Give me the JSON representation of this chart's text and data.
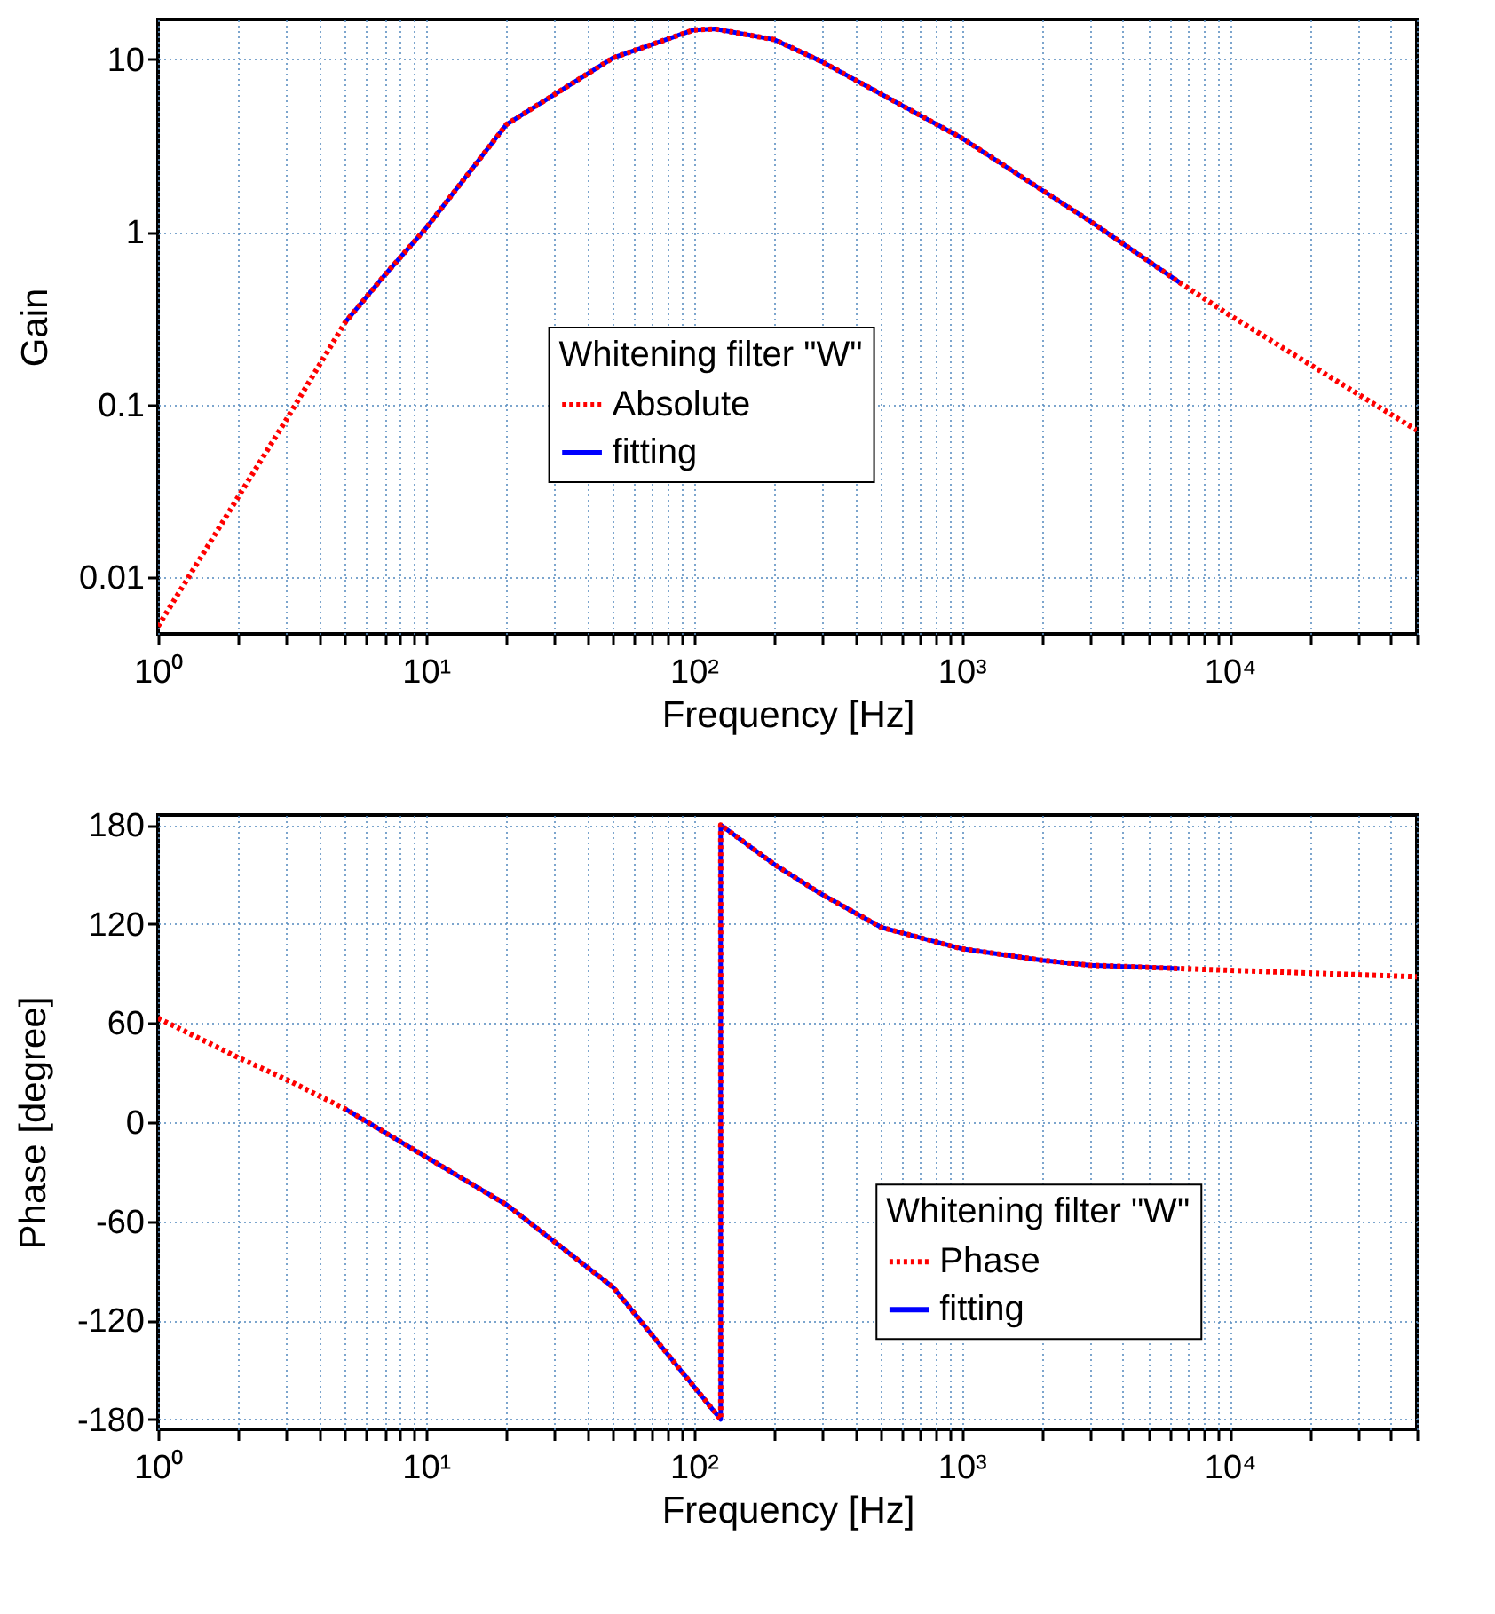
{
  "chart_data": [
    {
      "type": "line",
      "xlabel": "Frequency [Hz]",
      "ylabel": "Gain",
      "legend_title": "Whitening filter \"W\"",
      "legend": "center",
      "grid": true,
      "log": "xy",
      "xlim": [
        1,
        50000
      ],
      "ylim": [
        0.0047,
        17
      ],
      "xticks": [
        {
          "value": 1,
          "label": "10⁰"
        },
        {
          "value": 2,
          "label": null
        },
        {
          "value": 3,
          "label": null
        },
        {
          "value": 4,
          "label": null
        },
        {
          "value": 5,
          "label": null
        },
        {
          "value": 6,
          "label": null
        },
        {
          "value": 7,
          "label": null
        },
        {
          "value": 8,
          "label": null
        },
        {
          "value": 9,
          "label": null
        },
        {
          "value": 10,
          "label": "10¹"
        },
        {
          "value": 20,
          "label": null
        },
        {
          "value": 30,
          "label": null
        },
        {
          "value": 40,
          "label": null
        },
        {
          "value": 50,
          "label": null
        },
        {
          "value": 60,
          "label": null
        },
        {
          "value": 70,
          "label": null
        },
        {
          "value": 80,
          "label": null
        },
        {
          "value": 90,
          "label": null
        },
        {
          "value": 100,
          "label": "10²"
        },
        {
          "value": 200,
          "label": null
        },
        {
          "value": 300,
          "label": null
        },
        {
          "value": 400,
          "label": null
        },
        {
          "value": 500,
          "label": null
        },
        {
          "value": 600,
          "label": null
        },
        {
          "value": 700,
          "label": null
        },
        {
          "value": 800,
          "label": null
        },
        {
          "value": 900,
          "label": null
        },
        {
          "value": 1000,
          "label": "10³"
        },
        {
          "value": 2000,
          "label": null
        },
        {
          "value": 3000,
          "label": null
        },
        {
          "value": 4000,
          "label": null
        },
        {
          "value": 5000,
          "label": null
        },
        {
          "value": 6000,
          "label": null
        },
        {
          "value": 7000,
          "label": null
        },
        {
          "value": 8000,
          "label": null
        },
        {
          "value": 9000,
          "label": null
        },
        {
          "value": 10000,
          "label": "10⁴"
        },
        {
          "value": 20000,
          "label": null
        },
        {
          "value": 30000,
          "label": null
        },
        {
          "value": 40000,
          "label": null
        },
        {
          "value": 50000,
          "label": null
        }
      ],
      "yticks": [
        0.01,
        0.1,
        1,
        10
      ],
      "series": [
        {
          "name": "Absolute",
          "color": "#ff0000",
          "line_style": "dotted",
          "x": [
            1,
            2,
            3,
            5,
            7,
            10,
            20,
            50,
            100,
            120,
            200,
            300,
            1000,
            3000,
            6500,
            10000,
            50000
          ],
          "values": [
            0.0052,
            0.0295,
            0.081,
            0.3,
            0.56,
            1.05,
            4.2,
            10.2,
            14.8,
            15,
            13,
            9.7,
            3.5,
            1.16,
            0.51,
            0.33,
            0.071
          ]
        },
        {
          "name": "fitting",
          "color": "#0000ff",
          "line_style": "solid",
          "x": [
            5,
            7,
            10,
            20,
            50,
            100,
            120,
            200,
            300,
            1000,
            3000,
            6500
          ],
          "values": [
            0.3,
            0.56,
            1.05,
            4.2,
            10.2,
            14.8,
            15,
            13,
            9.7,
            3.5,
            1.16,
            0.51
          ]
        }
      ]
    },
    {
      "type": "line",
      "xlabel": "Frequency [Hz]",
      "ylabel": "Phase [degree]",
      "legend_title": "Whitening filter \"W\"",
      "legend": "bottom right",
      "grid": true,
      "log": "x",
      "xlim": [
        1,
        50000
      ],
      "ylim": [
        -186,
        186
      ],
      "xticks": [
        {
          "value": 1,
          "label": "10⁰"
        },
        {
          "value": 2,
          "label": null
        },
        {
          "value": 3,
          "label": null
        },
        {
          "value": 4,
          "label": null
        },
        {
          "value": 5,
          "label": null
        },
        {
          "value": 6,
          "label": null
        },
        {
          "value": 7,
          "label": null
        },
        {
          "value": 8,
          "label": null
        },
        {
          "value": 9,
          "label": null
        },
        {
          "value": 10,
          "label": "10¹"
        },
        {
          "value": 20,
          "label": null
        },
        {
          "value": 30,
          "label": null
        },
        {
          "value": 40,
          "label": null
        },
        {
          "value": 50,
          "label": null
        },
        {
          "value": 60,
          "label": null
        },
        {
          "value": 70,
          "label": null
        },
        {
          "value": 80,
          "label": null
        },
        {
          "value": 90,
          "label": null
        },
        {
          "value": 100,
          "label": "10²"
        },
        {
          "value": 200,
          "label": null
        },
        {
          "value": 300,
          "label": null
        },
        {
          "value": 400,
          "label": null
        },
        {
          "value": 500,
          "label": null
        },
        {
          "value": 600,
          "label": null
        },
        {
          "value": 700,
          "label": null
        },
        {
          "value": 800,
          "label": null
        },
        {
          "value": 900,
          "label": null
        },
        {
          "value": 1000,
          "label": "10³"
        },
        {
          "value": 2000,
          "label": null
        },
        {
          "value": 3000,
          "label": null
        },
        {
          "value": 4000,
          "label": null
        },
        {
          "value": 5000,
          "label": null
        },
        {
          "value": 6000,
          "label": null
        },
        {
          "value": 7000,
          "label": null
        },
        {
          "value": 8000,
          "label": null
        },
        {
          "value": 9000,
          "label": null
        },
        {
          "value": 10000,
          "label": "10⁴"
        },
        {
          "value": 20000,
          "label": null
        },
        {
          "value": 30000,
          "label": null
        },
        {
          "value": 40000,
          "label": null
        },
        {
          "value": 50000,
          "label": null
        }
      ],
      "yticks": [
        -180,
        -120,
        -60,
        0,
        60,
        120,
        180
      ],
      "series": [
        {
          "name": "Phase",
          "color": "#ff0000",
          "line_style": "dotted",
          "x": [
            1,
            2,
            3,
            5,
            10,
            20,
            50,
            100,
            126,
            126,
            200,
            300,
            500,
            1000,
            2000,
            3000,
            6500,
            50000
          ],
          "values": [
            63,
            39,
            26,
            8,
            -21,
            -50,
            -100,
            -160,
            -180,
            180,
            156,
            138,
            118,
            105,
            98,
            95,
            93,
            88
          ]
        },
        {
          "name": "fitting",
          "color": "#0000ff",
          "line_style": "solid",
          "x": [
            5,
            10,
            20,
            50,
            100,
            126,
            126,
            200,
            300,
            500,
            1000,
            2000,
            3000,
            6500
          ],
          "values": [
            8,
            -21,
            -50,
            -100,
            -160,
            -180,
            180,
            156,
            138,
            118,
            105,
            98,
            95,
            93
          ]
        }
      ]
    }
  ]
}
